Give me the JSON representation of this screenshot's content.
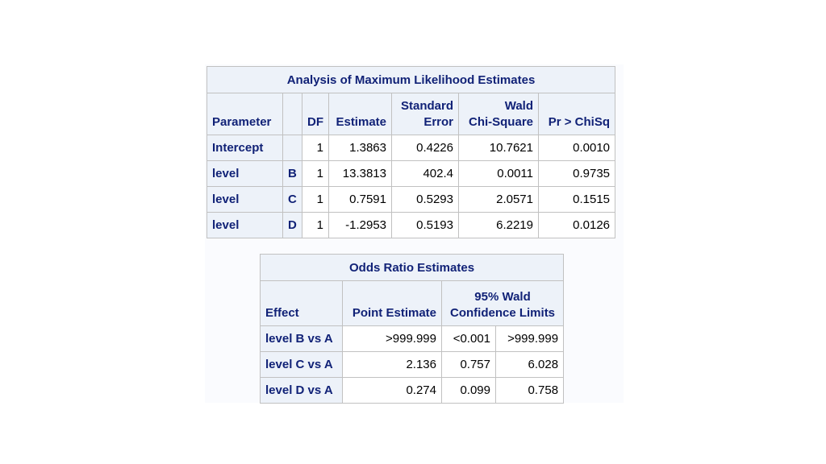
{
  "mle_table": {
    "caption": "Analysis of Maximum Likelihood Estimates",
    "headers": {
      "parameter": "Parameter",
      "df": "DF",
      "estimate": "Estimate",
      "std_error_l1": "Standard",
      "std_error_l2": "Error",
      "wald_l1": "Wald",
      "wald_l2": "Chi-Square",
      "pr": "Pr > ChiSq"
    },
    "rows": [
      {
        "parameter": "Intercept",
        "level": "",
        "df": "1",
        "estimate": "1.3863",
        "std_error": "0.4226",
        "wald": "10.7621",
        "pr": "0.0010"
      },
      {
        "parameter": "level",
        "level": "B",
        "df": "1",
        "estimate": "13.3813",
        "std_error": "402.4",
        "wald": "0.0011",
        "pr": "0.9735"
      },
      {
        "parameter": "level",
        "level": "C",
        "df": "1",
        "estimate": "0.7591",
        "std_error": "0.5293",
        "wald": "2.0571",
        "pr": "0.1515"
      },
      {
        "parameter": "level",
        "level": "D",
        "df": "1",
        "estimate": "-1.2953",
        "std_error": "0.5193",
        "wald": "6.2219",
        "pr": "0.0126"
      }
    ]
  },
  "odds_table": {
    "caption": "Odds Ratio Estimates",
    "headers": {
      "effect": "Effect",
      "point": "Point Estimate",
      "ci_l1": "95% Wald",
      "ci_l2": "Confidence Limits"
    },
    "rows": [
      {
        "effect": "level B vs A",
        "point": ">999.999",
        "lower": "<0.001",
        "upper": ">999.999"
      },
      {
        "effect": "level C vs A",
        "point": "2.136",
        "lower": "0.757",
        "upper": "6.028"
      },
      {
        "effect": "level D vs A",
        "point": "0.274",
        "lower": "0.099",
        "upper": "0.758"
      }
    ]
  }
}
